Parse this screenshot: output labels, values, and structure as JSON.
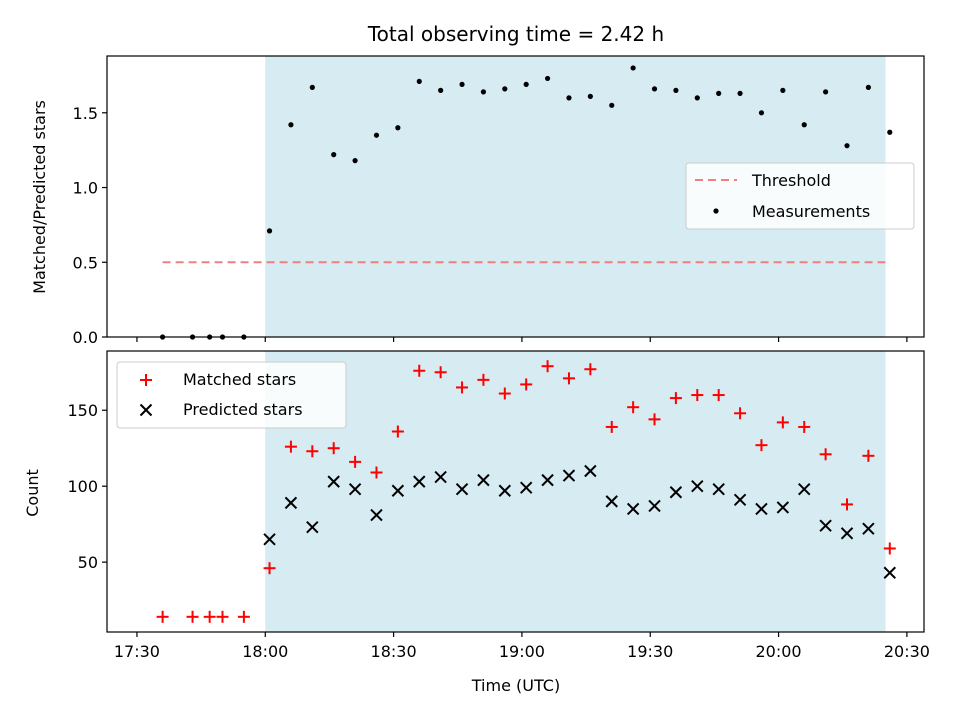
{
  "title": "Total observing time = 2.42 h",
  "colors": {
    "shade": "#add8e6",
    "threshold": "#f08080",
    "matched": "#ff0000",
    "predicted": "#000000",
    "measurement": "#000000"
  },
  "chart_data": [
    {
      "type": "scatter",
      "name": "ratio-panel",
      "ylabel": "Matched/Predicted stars",
      "xlabel": "",
      "ylim": [
        0,
        1.88
      ],
      "yticks": [
        {
          "v": 0.0,
          "label": "0.0"
        },
        {
          "v": 0.5,
          "label": "0.5"
        },
        {
          "v": 1.0,
          "label": "1.0"
        },
        {
          "v": 1.5,
          "label": "1.5"
        }
      ],
      "xlim_minutes": [
        1043,
        1234
      ],
      "shaded_span": [
        "18:00",
        "20:25"
      ],
      "threshold": {
        "name": "Threshold",
        "y": 0.5,
        "x_from": "17:36",
        "x_to": "20:25"
      },
      "legend": {
        "position": "center-right",
        "entries": [
          "Threshold",
          "Measurements"
        ]
      },
      "series": [
        {
          "name": "Measurements",
          "marker": "dot",
          "x": [
            "17:36",
            "17:43",
            "17:47",
            "17:50",
            "17:55",
            "18:01",
            "18:06",
            "18:11",
            "18:16",
            "18:21",
            "18:26",
            "18:31",
            "18:36",
            "18:41",
            "18:46",
            "18:51",
            "18:56",
            "19:01",
            "19:06",
            "19:11",
            "19:16",
            "19:21",
            "19:26",
            "19:31",
            "19:36",
            "19:41",
            "19:46",
            "19:51",
            "19:56",
            "20:01",
            "20:06",
            "20:11",
            "20:16",
            "20:21",
            "20:26"
          ],
          "y": [
            0.0,
            0.0,
            0.0,
            0.0,
            0.0,
            0.71,
            1.42,
            1.67,
            1.22,
            1.18,
            1.35,
            1.4,
            1.71,
            1.65,
            1.69,
            1.64,
            1.66,
            1.69,
            1.73,
            1.6,
            1.61,
            1.55,
            1.8,
            1.66,
            1.65,
            1.6,
            1.63,
            1.63,
            1.5,
            1.65,
            1.42,
            1.64,
            1.28,
            1.67,
            1.37
          ]
        }
      ]
    },
    {
      "type": "scatter",
      "name": "count-panel",
      "ylabel": "Count",
      "xlabel": "Time (UTC)",
      "ylim": [
        4,
        189
      ],
      "yticks": [
        {
          "v": 50,
          "label": "50"
        },
        {
          "v": 100,
          "label": "100"
        },
        {
          "v": 150,
          "label": "150"
        }
      ],
      "xticks": [
        "17:30",
        "18:00",
        "18:30",
        "19:00",
        "19:30",
        "20:00",
        "20:30"
      ],
      "xlim_minutes": [
        1043,
        1234
      ],
      "shaded_span": [
        "18:00",
        "20:25"
      ],
      "legend": {
        "position": "top-left",
        "entries": [
          "Matched stars",
          "Predicted stars"
        ]
      },
      "series": [
        {
          "name": "Matched stars",
          "marker": "plus",
          "x": [
            "17:36",
            "17:43",
            "17:47",
            "17:50",
            "17:55",
            "18:01",
            "18:06",
            "18:11",
            "18:16",
            "18:21",
            "18:26",
            "18:31",
            "18:36",
            "18:41",
            "18:46",
            "18:51",
            "18:56",
            "19:01",
            "19:06",
            "19:11",
            "19:16",
            "19:21",
            "19:26",
            "19:31",
            "19:36",
            "19:41",
            "19:46",
            "19:51",
            "19:56",
            "20:01",
            "20:06",
            "20:11",
            "20:16",
            "20:21",
            "20:26"
          ],
          "y": [
            14,
            14,
            14,
            14,
            14,
            46,
            126,
            123,
            125,
            116,
            109,
            136,
            176,
            175,
            165,
            170,
            161,
            167,
            179,
            171,
            177,
            139,
            152,
            144,
            158,
            160,
            160,
            148,
            127,
            142,
            139,
            121,
            88,
            120,
            59
          ]
        },
        {
          "name": "Predicted stars",
          "marker": "x",
          "x": [
            "18:01",
            "18:06",
            "18:11",
            "18:16",
            "18:21",
            "18:26",
            "18:31",
            "18:36",
            "18:41",
            "18:46",
            "18:51",
            "18:56",
            "19:01",
            "19:06",
            "19:11",
            "19:16",
            "19:21",
            "19:26",
            "19:31",
            "19:36",
            "19:41",
            "19:46",
            "19:51",
            "19:56",
            "20:01",
            "20:06",
            "20:11",
            "20:16",
            "20:21",
            "20:26"
          ],
          "y": [
            65,
            89,
            73,
            103,
            98,
            81,
            97,
            103,
            106,
            98,
            104,
            97,
            99,
            104,
            107,
            110,
            90,
            85,
            87,
            96,
            100,
            98,
            91,
            85,
            86,
            98,
            74,
            69,
            72,
            43
          ]
        }
      ]
    }
  ]
}
